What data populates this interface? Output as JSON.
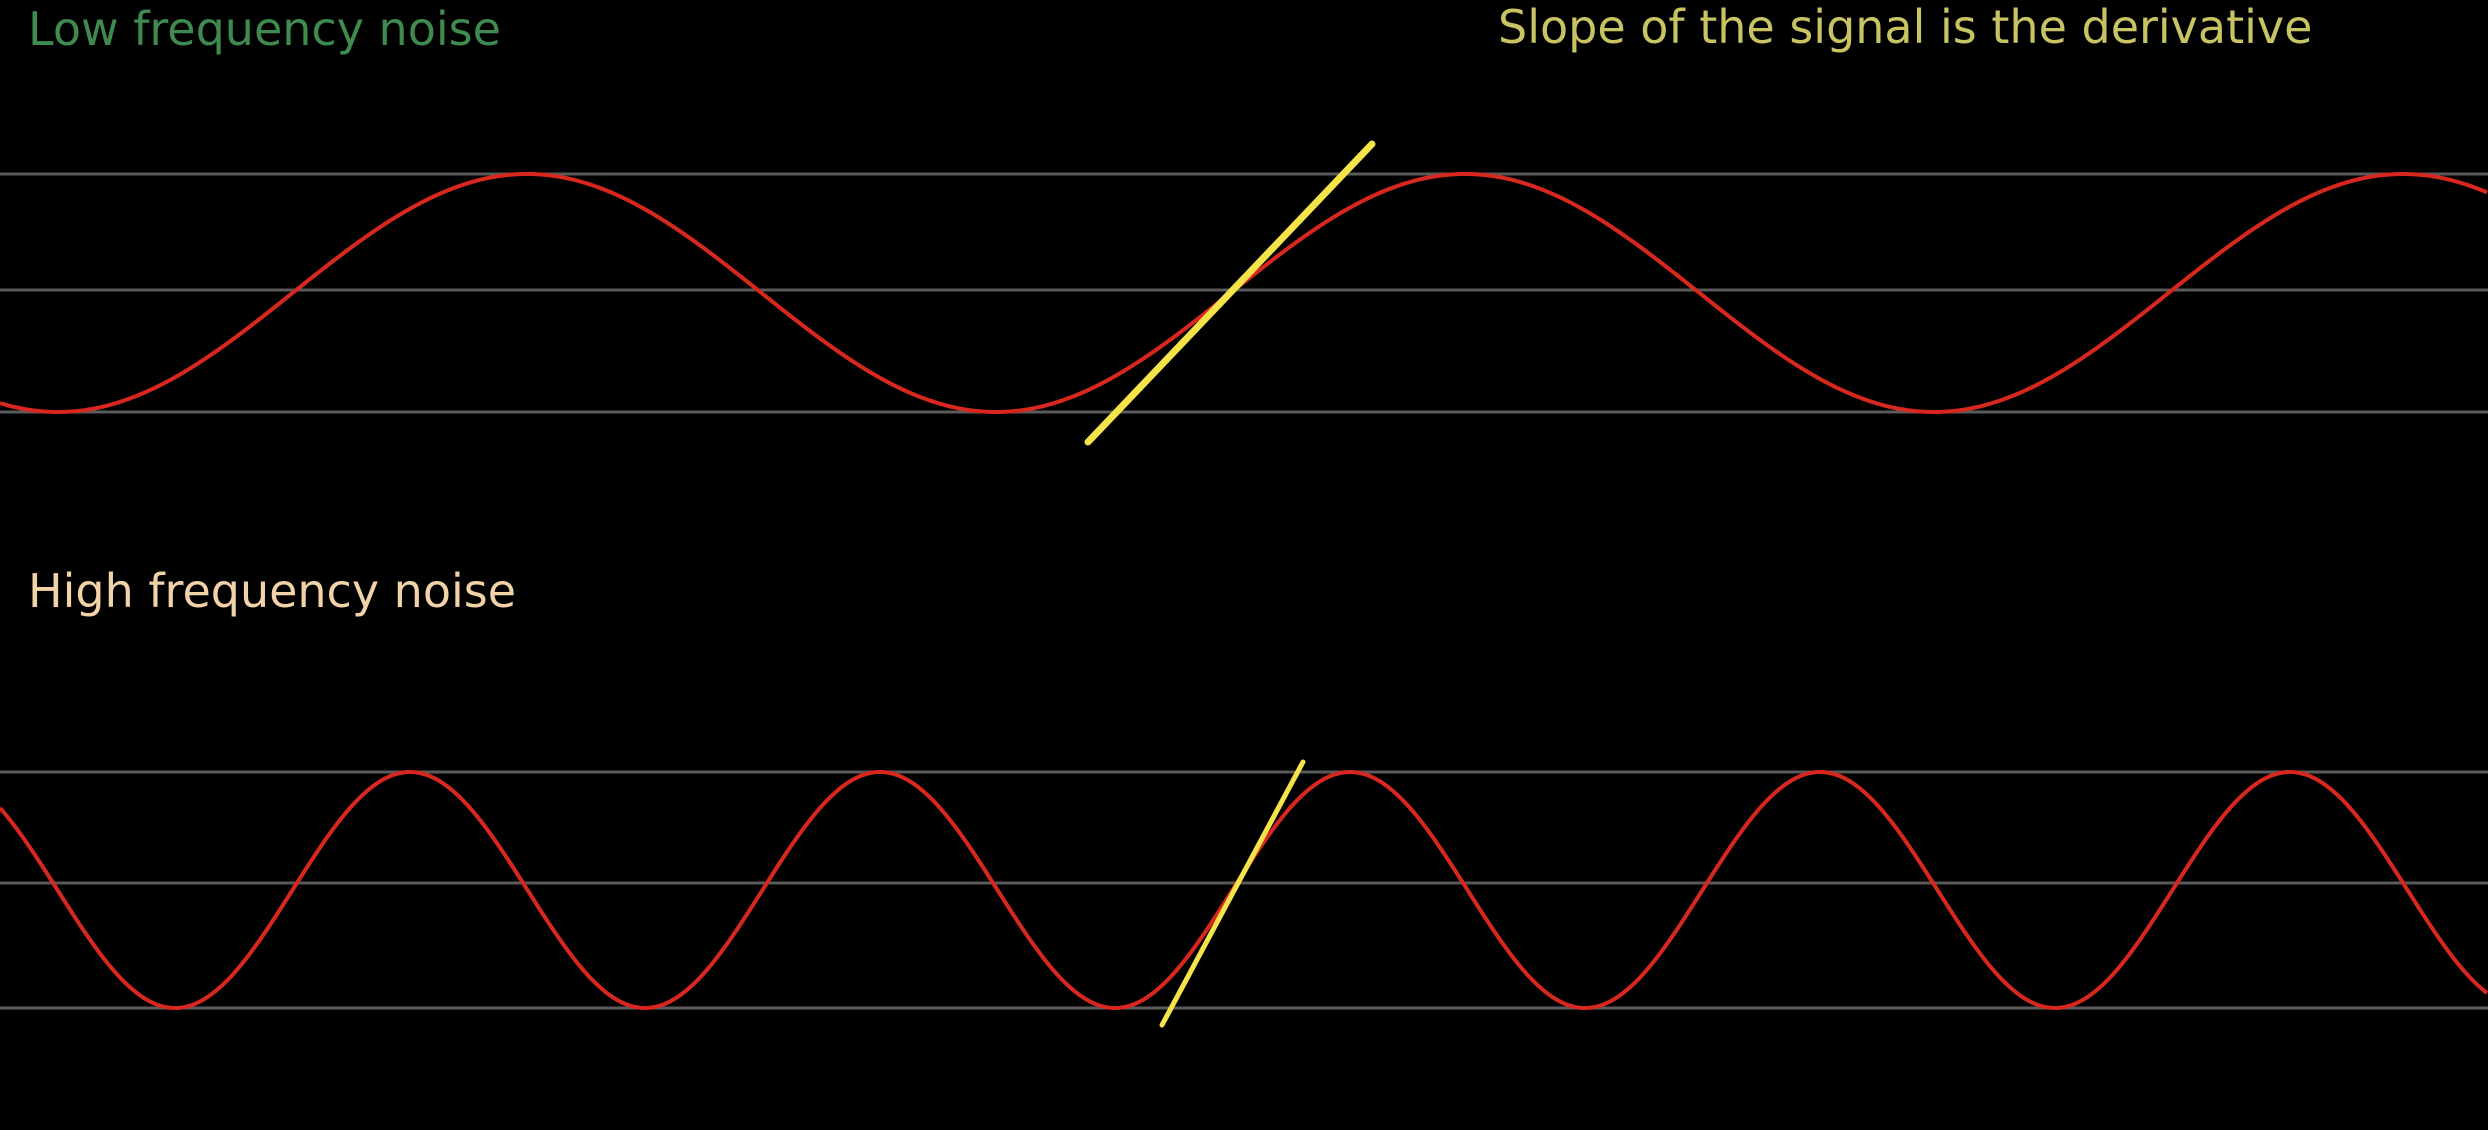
{
  "labels": {
    "low": "Low frequency noise",
    "slope": "Slope of the signal is the derivative",
    "high": "High frequency noise"
  },
  "colors": {
    "background": "#000000",
    "gridline": "#5a5a5a",
    "signal": "#d8271f",
    "tangent": "#f4e44a",
    "low_label": "#3f8a4f",
    "slope_label": "#c9c463",
    "high_label": "#f2d3a8"
  },
  "signals": [
    {
      "id": "low-frequency",
      "cycles_visible": 2.65,
      "tangent_at": "rising-zero-crossing"
    },
    {
      "id": "high-frequency",
      "cycles_visible": 5.3,
      "tangent_at": "rising-zero-crossing"
    }
  ]
}
